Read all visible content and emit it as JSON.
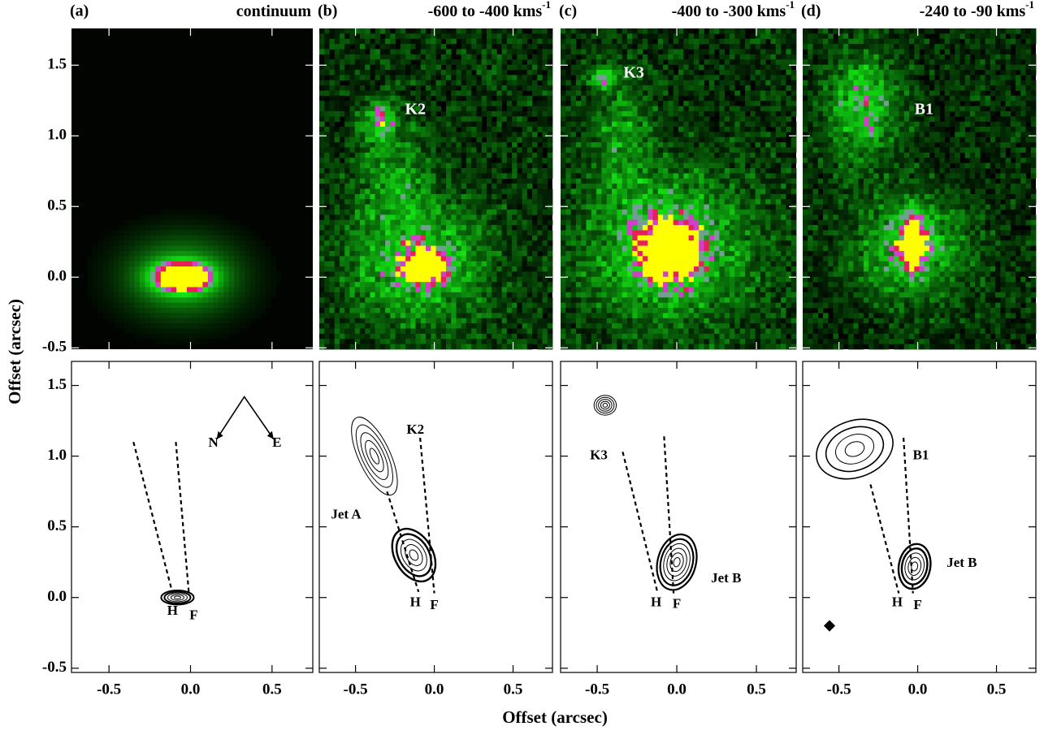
{
  "figure": {
    "x_label": "Offset (arcsec)",
    "y_label": "Offset (arcsec)",
    "xlim": [
      -0.73,
      0.75
    ],
    "xticks": [
      -0.5,
      {
        "value": 0,
        "label": "0.0"
      },
      0.5
    ],
    "image_ylim": [
      -0.51,
      1.76
    ],
    "contour_ylim": [
      -0.53,
      1.67
    ],
    "yticks": [
      -0.5,
      {
        "value": 0,
        "label": "0.0"
      },
      0.5,
      {
        "value": 1,
        "label": "1.0"
      },
      1.5
    ],
    "panels": [
      {
        "label": "(a)",
        "title": "continuum",
        "image_labels": [],
        "contour_labels": [
          "N",
          "E",
          "H",
          "F"
        ]
      },
      {
        "label": "(b)",
        "title": "-600 to -400 kms",
        "title_sup": "-1",
        "image_labels": [
          "K2"
        ],
        "contour_labels": [
          "K2",
          "Jet A",
          "H",
          "F"
        ]
      },
      {
        "label": "(c)",
        "title": "-400 to -300 kms",
        "title_sup": "-1",
        "image_labels": [
          "K3"
        ],
        "contour_labels": [
          "K3",
          "Jet B",
          "H",
          "F"
        ]
      },
      {
        "label": "(d)",
        "title": "-240 to -90 kms",
        "title_sup": "-1",
        "image_labels": [
          "B1"
        ],
        "contour_labels": [
          "B1",
          "Jet B",
          "H",
          "F"
        ]
      }
    ]
  }
}
